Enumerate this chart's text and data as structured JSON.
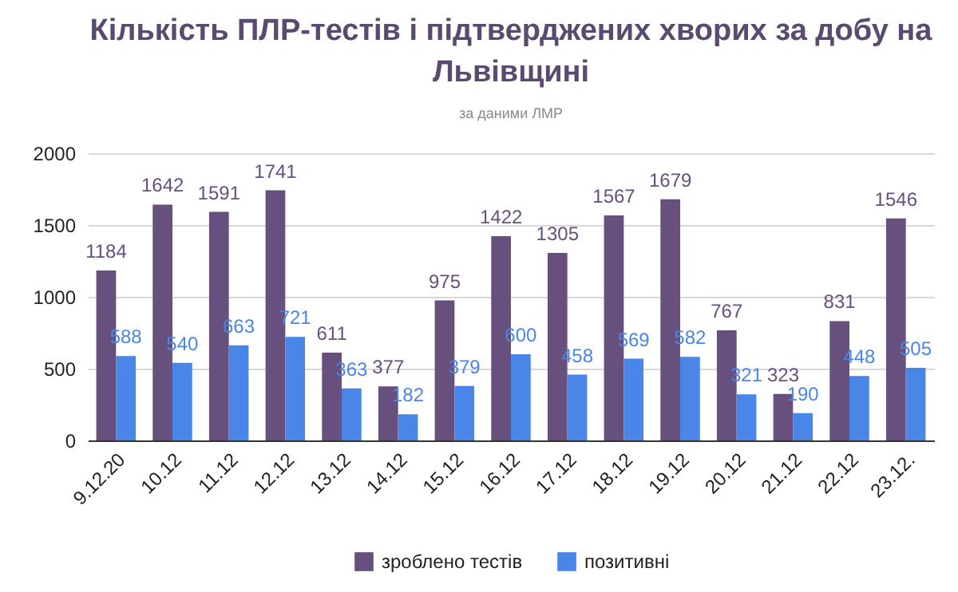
{
  "chart_data": {
    "type": "bar",
    "title": "Кількість ПЛР-тестів і підтверджених хворих за добу на Львівщині",
    "subtitle": "за даними ЛМР",
    "categories": [
      "9.12.20",
      "10.12",
      "11.12",
      "12.12",
      "13.12",
      "14.12",
      "15.12",
      "16.12",
      "17.12",
      "18.12",
      "19.12",
      "20.12",
      "21.12",
      "22.12",
      "23.12."
    ],
    "series": [
      {
        "name": "зроблено тестів",
        "color": "#674f7e",
        "values": [
          1184,
          1642,
          1591,
          1741,
          611,
          377,
          975,
          1422,
          1305,
          1567,
          1679,
          767,
          323,
          831,
          1546
        ]
      },
      {
        "name": "позитивні",
        "color": "#4a86e8",
        "values": [
          588,
          540,
          663,
          721,
          363,
          182,
          379,
          600,
          458,
          569,
          582,
          321,
          190,
          448,
          505
        ]
      }
    ],
    "ylim": [
      0,
      2000
    ],
    "yticks": [
      0,
      500,
      1000,
      1500,
      2000
    ],
    "grid": "y",
    "legend": "bottom",
    "data_labels": true
  }
}
